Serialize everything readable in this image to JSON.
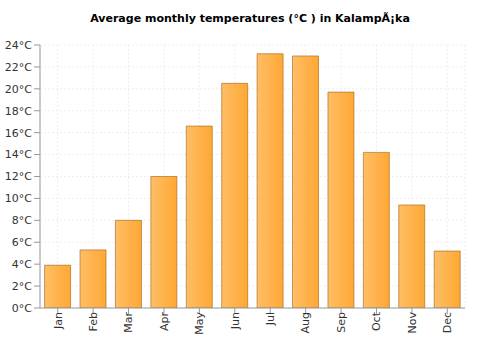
{
  "chart_data": {
    "type": "bar",
    "title": "Average monthly temperatures (°C ) in KalampÃ¡ka",
    "categories": [
      "Jan",
      "Feb",
      "Mar",
      "Apr",
      "May",
      "Jun",
      "Jul",
      "Aug",
      "Sep",
      "Oct",
      "Nov",
      "Dec"
    ],
    "values": [
      3.9,
      5.3,
      8.0,
      12.0,
      16.6,
      20.5,
      23.2,
      23.0,
      19.7,
      14.2,
      9.4,
      5.2
    ],
    "color": "#ffa833",
    "ylim": [
      0,
      24
    ],
    "yticks": [
      {
        "value": 0,
        "label": "0°C"
      },
      {
        "value": 2,
        "label": "2°C"
      },
      {
        "value": 4,
        "label": "4°C"
      },
      {
        "value": 6,
        "label": "6°C"
      },
      {
        "value": 8,
        "label": "8°C"
      },
      {
        "value": 10,
        "label": "10°C"
      },
      {
        "value": 12,
        "label": "12°C"
      },
      {
        "value": 14,
        "label": "14°C"
      },
      {
        "value": 16,
        "label": "16°C"
      },
      {
        "value": 18,
        "label": "18°C"
      },
      {
        "value": 20,
        "label": "20°C"
      },
      {
        "value": 22,
        "label": "22°C"
      },
      {
        "value": 24,
        "label": "24°C"
      }
    ],
    "grid": true
  }
}
